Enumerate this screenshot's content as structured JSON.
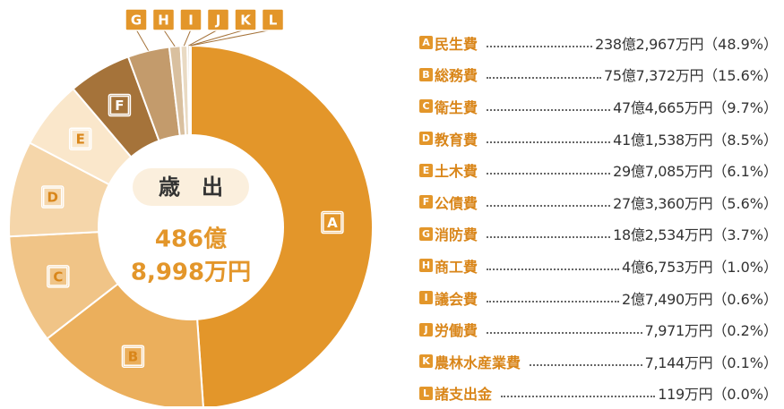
{
  "chart_data": {
    "type": "pie",
    "title": "歳　出",
    "total": [
      "486億",
      "8,998万円"
    ],
    "categories": [
      "民生費",
      "総務費",
      "衛生費",
      "教育費",
      "土木費",
      "公債費",
      "消防費",
      "商工費",
      "議会費",
      "労働費",
      "農林水産業費",
      "諸支出金"
    ],
    "letters": [
      "A",
      "B",
      "C",
      "D",
      "E",
      "F",
      "G",
      "H",
      "I",
      "J",
      "K",
      "L"
    ],
    "amounts": [
      "238億2,967万円",
      "75億7,372万円",
      "47億4,665万円",
      "41億1,538万円",
      "29億7,085万円",
      "27億3,360万円",
      "18億2,534万円",
      "4億6,753万円",
      "2億7,490万円",
      "7,971万円",
      "7,144万円",
      "119万円"
    ],
    "values": [
      48.9,
      15.6,
      9.7,
      8.5,
      6.1,
      5.6,
      3.7,
      1.0,
      0.6,
      0.2,
      0.1,
      0.0
    ],
    "value_labels": [
      "（48.9%）",
      "（15.6%）",
      "（9.7%）",
      "（8.5%）",
      "（6.1%）",
      "（5.6%）",
      "（3.7%）",
      "（1.0%）",
      "（0.6%）",
      "（0.2%）",
      "（0.1%）",
      "（0.0%）"
    ],
    "colors": [
      "#e3962a",
      "#ebaf5c",
      "#f0c487",
      "#f5d6aa",
      "#fae7cb",
      "#a5733a",
      "#c39b6c",
      "#d9c09f",
      "#e9dac3",
      "#cdbfa7",
      "#e2d3bb",
      "#f1e7d8"
    ]
  }
}
